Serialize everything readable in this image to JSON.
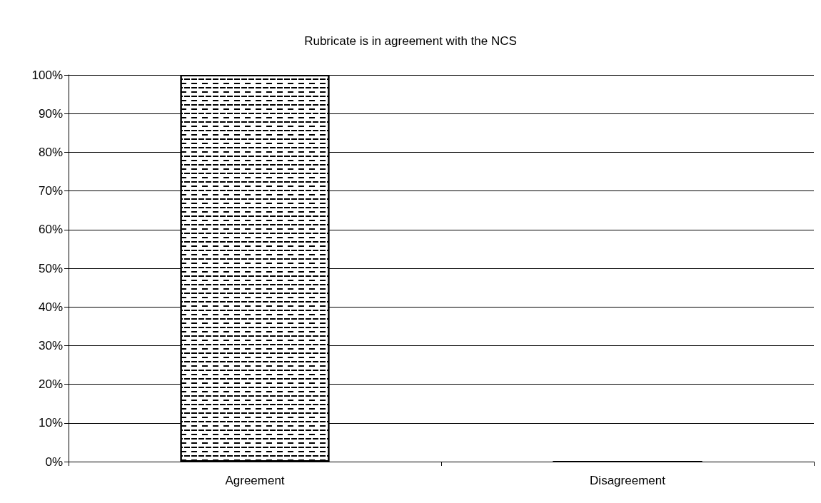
{
  "chart_data": {
    "type": "bar",
    "title": "Rubricate is in agreement with the NCS",
    "categories": [
      "Agreement",
      "Disagreement"
    ],
    "values": [
      100,
      0
    ],
    "color": "#ffffff",
    "ylim": [
      0,
      100
    ],
    "yticks": [
      {
        "value": 0,
        "label": "0%"
      },
      {
        "value": 10,
        "label": "10%"
      },
      {
        "value": 20,
        "label": "20%"
      },
      {
        "value": 30,
        "label": "30%"
      },
      {
        "value": 40,
        "label": "40%"
      },
      {
        "value": 50,
        "label": "50%"
      },
      {
        "value": 60,
        "label": "60%"
      },
      {
        "value": 70,
        "label": "70%"
      },
      {
        "value": 80,
        "label": "80%"
      },
      {
        "value": 90,
        "label": "90%"
      },
      {
        "value": 100,
        "label": "100%"
      }
    ],
    "grid": "y"
  }
}
